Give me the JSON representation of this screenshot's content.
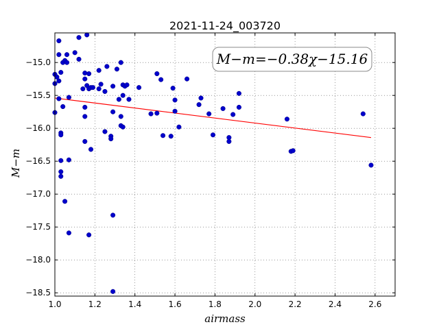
{
  "chart_data": {
    "type": "scatter",
    "title": "2021-11-24_003720",
    "xlabel": "airmass",
    "ylabel": "M−m",
    "xlim": [
      1.0,
      2.7
    ],
    "ylim": [
      -18.55,
      -14.55
    ],
    "grid": true,
    "x_ticks": [
      1.0,
      1.2,
      1.4,
      1.6,
      1.8,
      2.0,
      2.2,
      2.4,
      2.6
    ],
    "x_tick_labels": [
      "1.0",
      "1.2",
      "1.4",
      "1.6",
      "1.8",
      "2.0",
      "2.2",
      "2.4",
      "2.6"
    ],
    "y_ticks": [
      -15.0,
      -15.5,
      -16.0,
      -16.5,
      -17.0,
      -17.5,
      -18.0,
      -18.5
    ],
    "y_tick_labels": [
      "−15.0",
      "−15.5",
      "−16.0",
      "−16.5",
      "−17.0",
      "−17.5",
      "−18.0",
      "−18.5"
    ],
    "annotation": "M−m=−0.38χ−15.16",
    "point_color": "#0000cc",
    "fit_color": "#ff0000",
    "fit": {
      "slope": -0.38,
      "intercept": -15.16,
      "x_range": [
        1.0,
        2.58
      ]
    },
    "points": [
      [
        1.0,
        -15.18
      ],
      [
        1.0,
        -15.32
      ],
      [
        1.0,
        -15.76
      ],
      [
        1.01,
        -15.22
      ],
      [
        1.02,
        -14.67
      ],
      [
        1.02,
        -14.88
      ],
      [
        1.02,
        -15.28
      ],
      [
        1.02,
        -15.55
      ],
      [
        1.03,
        -15.15
      ],
      [
        1.03,
        -16.07
      ],
      [
        1.03,
        -16.1
      ],
      [
        1.03,
        -16.49
      ],
      [
        1.03,
        -16.66
      ],
      [
        1.03,
        -16.73
      ],
      [
        1.04,
        -15.0
      ],
      [
        1.04,
        -15.67
      ],
      [
        1.05,
        -14.97
      ],
      [
        1.05,
        -17.11
      ],
      [
        1.06,
        -14.88
      ],
      [
        1.06,
        -15.0
      ],
      [
        1.07,
        -15.53
      ],
      [
        1.07,
        -16.48
      ],
      [
        1.07,
        -17.59
      ],
      [
        1.1,
        -14.85
      ],
      [
        1.12,
        -14.62
      ],
      [
        1.12,
        -14.95
      ],
      [
        1.14,
        -15.4
      ],
      [
        1.15,
        -15.16
      ],
      [
        1.15,
        -15.25
      ],
      [
        1.15,
        -15.68
      ],
      [
        1.15,
        -15.82
      ],
      [
        1.15,
        -16.2
      ],
      [
        1.16,
        -14.58
      ],
      [
        1.16,
        -15.35
      ],
      [
        1.17,
        -15.17
      ],
      [
        1.17,
        -15.4
      ],
      [
        1.17,
        -17.62
      ],
      [
        1.18,
        -15.38
      ],
      [
        1.18,
        -16.32
      ],
      [
        1.19,
        -15.38
      ],
      [
        1.22,
        -15.12
      ],
      [
        1.22,
        -15.4
      ],
      [
        1.23,
        -15.33
      ],
      [
        1.25,
        -15.44
      ],
      [
        1.25,
        -16.05
      ],
      [
        1.26,
        -15.06
      ],
      [
        1.28,
        -16.12
      ],
      [
        1.28,
        -16.16
      ],
      [
        1.29,
        -15.36
      ],
      [
        1.29,
        -15.75
      ],
      [
        1.29,
        -17.32
      ],
      [
        1.29,
        -18.48
      ],
      [
        1.31,
        -15.1
      ],
      [
        1.32,
        -15.56
      ],
      [
        1.33,
        -15.0
      ],
      [
        1.33,
        -15.82
      ],
      [
        1.33,
        -15.96
      ],
      [
        1.34,
        -15.34
      ],
      [
        1.34,
        -15.5
      ],
      [
        1.34,
        -15.98
      ],
      [
        1.35,
        -15.36
      ],
      [
        1.36,
        -15.34
      ],
      [
        1.37,
        -15.56
      ],
      [
        1.42,
        -15.38
      ],
      [
        1.48,
        -15.78
      ],
      [
        1.51,
        -15.17
      ],
      [
        1.51,
        -15.77
      ],
      [
        1.53,
        -15.26
      ],
      [
        1.54,
        -16.11
      ],
      [
        1.58,
        -16.12
      ],
      [
        1.59,
        -15.39
      ],
      [
        1.6,
        -15.57
      ],
      [
        1.6,
        -15.74
      ],
      [
        1.62,
        -15.98
      ],
      [
        1.66,
        -15.25
      ],
      [
        1.72,
        -15.64
      ],
      [
        1.73,
        -15.54
      ],
      [
        1.77,
        -15.78
      ],
      [
        1.79,
        -16.1
      ],
      [
        1.84,
        -15.7
      ],
      [
        1.87,
        -16.14
      ],
      [
        1.87,
        -16.2
      ],
      [
        1.89,
        -15.79
      ],
      [
        1.92,
        -15.68
      ],
      [
        1.92,
        -15.47
      ],
      [
        2.16,
        -15.86
      ],
      [
        2.18,
        -16.35
      ],
      [
        2.19,
        -16.34
      ],
      [
        2.54,
        -15.78
      ],
      [
        2.58,
        -16.56
      ]
    ]
  }
}
